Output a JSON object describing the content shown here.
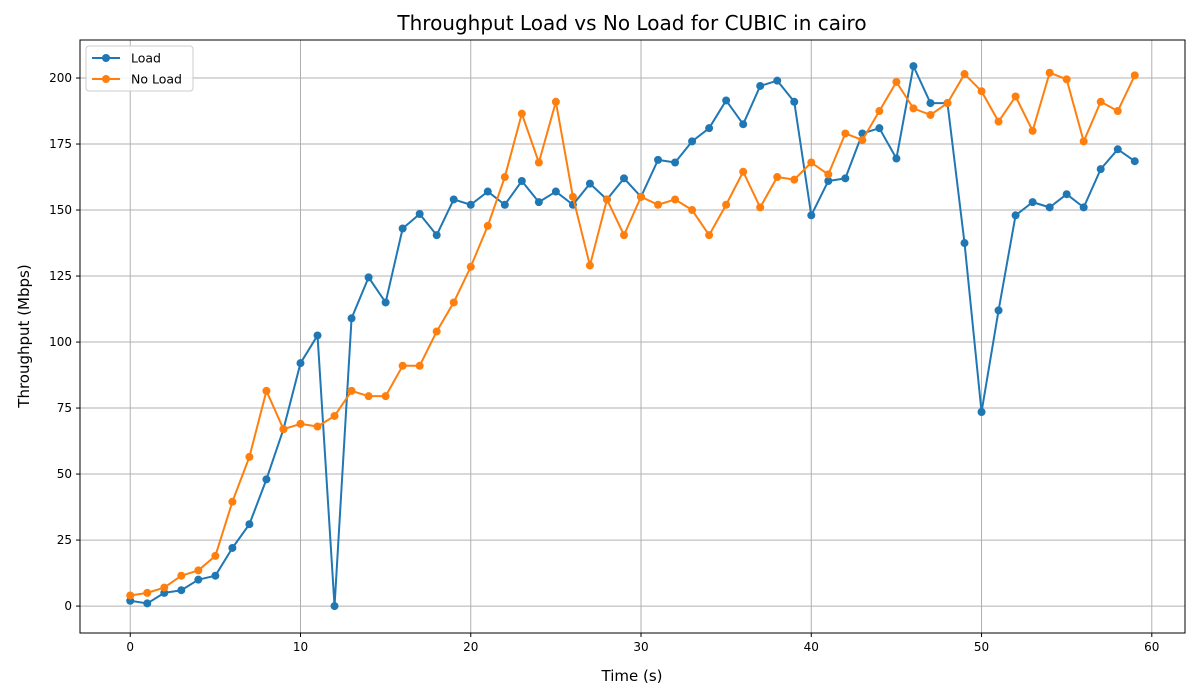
{
  "chart_data": {
    "type": "line",
    "title": "Throughput Load vs No Load for CUBIC in cairo",
    "xlabel": "Time (s)",
    "ylabel": "Throughput (Mbps)",
    "xlim": [
      -2.95,
      61.95
    ],
    "ylim": [
      -10.2,
      214.4
    ],
    "x_ticks": [
      0,
      10,
      20,
      30,
      40,
      50,
      60
    ],
    "y_ticks": [
      0,
      25,
      50,
      75,
      100,
      125,
      150,
      175,
      200
    ],
    "x_tick_labels": [
      "0",
      "10",
      "20",
      "30",
      "40",
      "50",
      "60"
    ],
    "y_tick_labels": [
      "0",
      "25",
      "50",
      "75",
      "100",
      "125",
      "150",
      "175",
      "200"
    ],
    "grid": true,
    "legend_position": "top-left",
    "x": [
      0,
      1,
      2,
      3,
      4,
      5,
      6,
      7,
      8,
      9,
      10,
      11,
      12,
      13,
      14,
      15,
      16,
      17,
      18,
      19,
      20,
      21,
      22,
      23,
      24,
      25,
      26,
      27,
      28,
      29,
      30,
      31,
      32,
      33,
      34,
      35,
      36,
      37,
      38,
      39,
      40,
      41,
      42,
      43,
      44,
      45,
      46,
      47,
      48,
      49,
      50,
      51,
      52,
      53,
      54,
      55,
      56,
      57,
      58,
      59
    ],
    "series": [
      {
        "name": "Load",
        "color": "#1f77b4",
        "values": [
          2,
          1,
          5,
          6,
          10,
          11.5,
          22,
          31,
          48,
          67,
          92,
          102.5,
          0,
          109,
          124.5,
          115,
          143,
          148.5,
          140.5,
          154,
          152,
          157,
          152,
          161,
          153,
          157,
          152,
          160,
          154,
          162,
          155,
          169,
          168,
          176,
          181,
          191.5,
          182.5,
          197,
          199,
          191,
          148,
          161,
          162,
          179,
          181,
          169.5,
          204.5,
          190.5,
          190.5,
          137.5,
          73.5,
          112,
          148,
          153,
          151,
          156,
          151,
          165.5,
          173,
          168.5
        ]
      },
      {
        "name": "No Load",
        "color": "#ff7f0e",
        "values": [
          4,
          5,
          7,
          11.5,
          13.5,
          19,
          39.5,
          56.5,
          81.5,
          67,
          69,
          68,
          72,
          81.5,
          79.5,
          79.5,
          91,
          91,
          104,
          115,
          128.5,
          144,
          162.5,
          186.5,
          168,
          191,
          155,
          129,
          154,
          140.5,
          155,
          152,
          154,
          150,
          140.5,
          152,
          164.5,
          151,
          162.5,
          161.5,
          168,
          163.5,
          179,
          176.5,
          187.5,
          198.5,
          188.5,
          186,
          190.5,
          201.5,
          195,
          183.5,
          193,
          180,
          202,
          199.5,
          176,
          191,
          187.5,
          201
        ]
      }
    ]
  }
}
